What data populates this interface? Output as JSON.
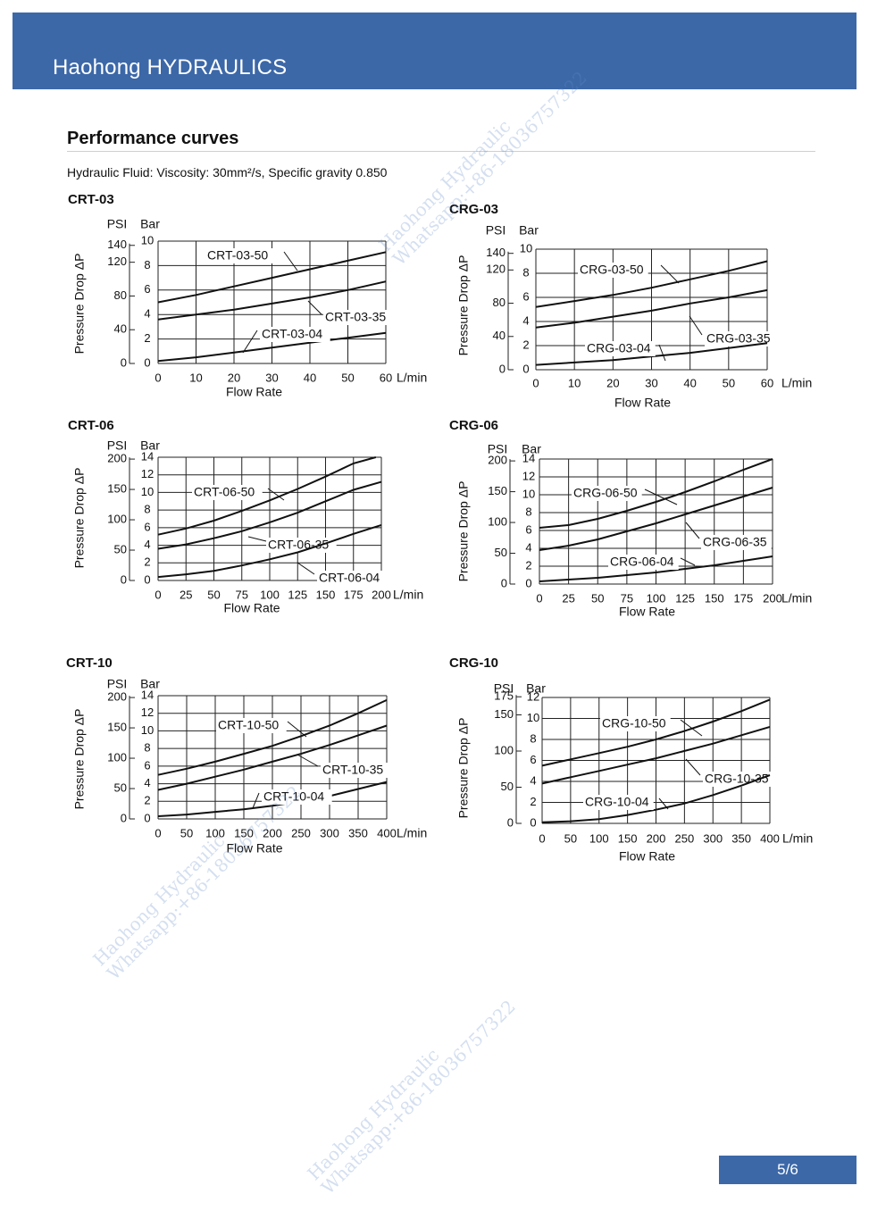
{
  "header": {
    "brand": "Haohong HYDRAULICS"
  },
  "section": {
    "title": "Performance curves",
    "fluid_note": "Hydraulic Fluid: Viscosity: 30mm²/s, Specific gravity 0.850"
  },
  "footer": {
    "page": "5/6"
  },
  "watermark": {
    "line1": "Haohong Hydraulic",
    "line2": "Whatsapp:+86-18036757322"
  },
  "chart_data": [
    {
      "id": "CRT-03",
      "type": "line",
      "title": "CRT-03",
      "xlabel": "Flow Rate",
      "x_unit": "L/min",
      "ylabel": "Pressure Drop ΔP",
      "psi_label": "PSI",
      "bar_label": "Bar",
      "xlim": [
        0,
        60
      ],
      "ylim": [
        0,
        10
      ],
      "x_ticks": [
        0,
        10,
        20,
        30,
        40,
        50,
        60
      ],
      "bar_ticks": [
        0,
        2,
        4,
        6,
        8,
        10
      ],
      "psi_ticks": [
        0,
        40,
        80,
        120,
        140
      ],
      "series": [
        {
          "name": "CRT-03-50",
          "x": [
            0,
            10,
            20,
            30,
            40,
            50,
            60
          ],
          "y": [
            5.0,
            5.6,
            6.3,
            7.0,
            7.7,
            8.4,
            9.1
          ]
        },
        {
          "name": "CRT-03-35",
          "x": [
            0,
            10,
            20,
            30,
            40,
            50,
            60
          ],
          "y": [
            3.6,
            4.0,
            4.4,
            4.9,
            5.4,
            6.0,
            6.7
          ]
        },
        {
          "name": "CRT-03-04",
          "x": [
            0,
            10,
            20,
            30,
            40,
            50,
            60
          ],
          "y": [
            0.2,
            0.5,
            0.9,
            1.3,
            1.7,
            2.1,
            2.5
          ]
        }
      ]
    },
    {
      "id": "CRG-03",
      "type": "line",
      "title": "CRG-03",
      "xlabel": "Flow Rate",
      "x_unit": "L/min",
      "ylabel": "Pressure Drop ΔP",
      "psi_label": "PSI",
      "bar_label": "Bar",
      "xlim": [
        0,
        60
      ],
      "ylim": [
        0,
        10
      ],
      "x_ticks": [
        0,
        10,
        20,
        30,
        40,
        50,
        60
      ],
      "bar_ticks": [
        0,
        2,
        4,
        6,
        8,
        10
      ],
      "psi_ticks": [
        0,
        40,
        80,
        120,
        140
      ],
      "series": [
        {
          "name": "CRG-03-50",
          "x": [
            0,
            10,
            20,
            30,
            40,
            50,
            60
          ],
          "y": [
            5.2,
            5.7,
            6.2,
            6.8,
            7.5,
            8.2,
            9.0
          ]
        },
        {
          "name": "CRG-03-35",
          "x": [
            0,
            10,
            20,
            30,
            40,
            50,
            60
          ],
          "y": [
            3.5,
            3.9,
            4.4,
            4.9,
            5.5,
            6.0,
            6.6
          ]
        },
        {
          "name": "CRG-03-04",
          "x": [
            0,
            10,
            20,
            30,
            40,
            50,
            60
          ],
          "y": [
            0.4,
            0.6,
            0.8,
            1.1,
            1.4,
            1.8,
            2.2
          ]
        }
      ]
    },
    {
      "id": "CRT-06",
      "type": "line",
      "title": "CRT-06",
      "xlabel": "Flow Rate",
      "x_unit": "L/min",
      "ylabel": "Pressure Drop ΔP",
      "psi_label": "PSI",
      "bar_label": "Bar",
      "xlim": [
        0,
        200
      ],
      "ylim": [
        0,
        14
      ],
      "x_ticks": [
        0,
        25,
        50,
        75,
        100,
        125,
        150,
        175,
        200
      ],
      "bar_ticks": [
        0,
        2,
        4,
        6,
        8,
        10,
        12,
        14
      ],
      "psi_ticks": [
        0,
        50,
        100,
        150,
        200
      ],
      "series": [
        {
          "name": "CRT-06-50",
          "x": [
            0,
            25,
            50,
            75,
            100,
            125,
            150,
            175,
            195
          ],
          "y": [
            5.2,
            5.9,
            6.8,
            7.9,
            9.1,
            10.4,
            11.8,
            13.3,
            14.0
          ]
        },
        {
          "name": "CRT-06-35",
          "x": [
            0,
            25,
            50,
            75,
            100,
            125,
            150,
            175,
            200
          ],
          "y": [
            3.6,
            4.1,
            4.8,
            5.6,
            6.6,
            7.7,
            9.0,
            10.3,
            11.2
          ]
        },
        {
          "name": "CRT-06-04",
          "x": [
            0,
            25,
            50,
            75,
            100,
            125,
            150,
            175,
            200
          ],
          "y": [
            0.4,
            0.7,
            1.1,
            1.7,
            2.4,
            3.2,
            4.2,
            5.3,
            6.3
          ]
        }
      ]
    },
    {
      "id": "CRG-06",
      "type": "line",
      "title": "CRG-06",
      "xlabel": "Flow Rate",
      "x_unit": "L/min",
      "ylabel": "Pressure Drop ΔP",
      "psi_label": "PSI",
      "bar_label": "Bar",
      "xlim": [
        0,
        200
      ],
      "ylim": [
        0,
        14
      ],
      "x_ticks": [
        0,
        25,
        50,
        75,
        100,
        125,
        150,
        175,
        200
      ],
      "bar_ticks": [
        0,
        2,
        4,
        6,
        8,
        10,
        12,
        14
      ],
      "psi_ticks": [
        0,
        50,
        100,
        150,
        200
      ],
      "series": [
        {
          "name": "CRG-06-50",
          "x": [
            0,
            25,
            50,
            75,
            100,
            125,
            150,
            175,
            200
          ],
          "y": [
            6.3,
            6.6,
            7.3,
            8.2,
            9.2,
            10.3,
            11.5,
            12.8,
            14.0
          ]
        },
        {
          "name": "CRG-06-35",
          "x": [
            0,
            25,
            50,
            75,
            100,
            125,
            150,
            175,
            200
          ],
          "y": [
            3.8,
            4.3,
            5.0,
            5.9,
            6.8,
            7.8,
            8.8,
            9.8,
            10.8
          ]
        },
        {
          "name": "CRG-06-04",
          "x": [
            0,
            25,
            50,
            75,
            100,
            125,
            150,
            175,
            200
          ],
          "y": [
            0.3,
            0.5,
            0.7,
            1.0,
            1.3,
            1.7,
            2.1,
            2.6,
            3.1
          ]
        }
      ]
    },
    {
      "id": "CRT-10",
      "type": "line",
      "title": "CRT-10",
      "xlabel": "Flow Rate",
      "x_unit": "L/min",
      "ylabel": "Pressure Drop ΔP",
      "psi_label": "PSI",
      "bar_label": "Bar",
      "xlim": [
        0,
        400
      ],
      "ylim": [
        0,
        14
      ],
      "x_ticks": [
        0,
        50,
        100,
        150,
        200,
        250,
        300,
        350,
        400
      ],
      "bar_ticks": [
        0,
        2,
        4,
        6,
        8,
        10,
        12,
        14
      ],
      "psi_ticks": [
        0,
        50,
        100,
        150,
        200
      ],
      "series": [
        {
          "name": "CRT-10-50",
          "x": [
            0,
            50,
            100,
            150,
            200,
            250,
            300,
            350,
            400
          ],
          "y": [
            5.0,
            5.7,
            6.5,
            7.4,
            8.3,
            9.4,
            10.6,
            12.0,
            13.5
          ]
        },
        {
          "name": "CRT-10-35",
          "x": [
            0,
            50,
            100,
            150,
            200,
            250,
            300,
            350,
            400
          ],
          "y": [
            3.3,
            4.0,
            4.8,
            5.6,
            6.5,
            7.4,
            8.4,
            9.5,
            10.6
          ]
        },
        {
          "name": "CRT-10-04",
          "x": [
            0,
            50,
            100,
            150,
            200,
            250,
            300,
            350,
            400
          ],
          "y": [
            0.3,
            0.5,
            0.8,
            1.1,
            1.5,
            2.0,
            2.6,
            3.4,
            4.2
          ]
        }
      ]
    },
    {
      "id": "CRG-10",
      "type": "line",
      "title": "CRG-10",
      "xlabel": "Flow Rate",
      "x_unit": "L/min",
      "ylabel": "Pressure Drop ΔP",
      "psi_label": "PSI",
      "bar_label": "Bar",
      "xlim": [
        0,
        400
      ],
      "ylim": [
        0,
        12
      ],
      "x_ticks": [
        0,
        50,
        100,
        150,
        200,
        250,
        300,
        350,
        400
      ],
      "bar_ticks": [
        0,
        2,
        4,
        6,
        8,
        10,
        12
      ],
      "psi_ticks": [
        0,
        50,
        100,
        150,
        175
      ],
      "series": [
        {
          "name": "CRG-10-50",
          "x": [
            0,
            50,
            100,
            150,
            200,
            250,
            300,
            350,
            400
          ],
          "y": [
            5.5,
            6.1,
            6.7,
            7.3,
            8.0,
            8.8,
            9.7,
            10.7,
            11.8
          ]
        },
        {
          "name": "CRG-10-35",
          "x": [
            0,
            50,
            100,
            150,
            200,
            250,
            300,
            350,
            400
          ],
          "y": [
            3.8,
            4.4,
            5.0,
            5.6,
            6.2,
            6.9,
            7.6,
            8.4,
            9.2
          ]
        },
        {
          "name": "CRG-10-04",
          "x": [
            0,
            50,
            100,
            150,
            200,
            250,
            300,
            350,
            400
          ],
          "y": [
            0.1,
            0.2,
            0.4,
            0.8,
            1.3,
            1.9,
            2.7,
            3.6,
            4.6
          ]
        }
      ]
    }
  ]
}
